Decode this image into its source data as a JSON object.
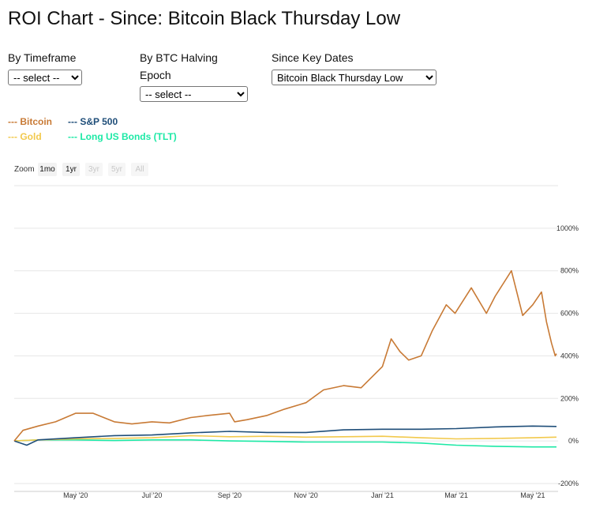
{
  "page": {
    "title": "ROI Chart - Since: Bitcoin Black Thursday Low"
  },
  "controls": {
    "timeframe": {
      "label": "By Timeframe",
      "value": "-- select --"
    },
    "halving": {
      "label_line1": "By BTC Halving",
      "label_line2": "Epoch",
      "value": "-- select --"
    },
    "key_dates": {
      "label": "Since Key Dates",
      "value": "Bitcoin Black Thursday Low"
    }
  },
  "legend": [
    {
      "label": "--- Bitcoin",
      "color": "#c87a35"
    },
    {
      "label": "--- S&P 500",
      "color": "#1f4e79"
    },
    {
      "label": "--- Gold",
      "color": "#f2c94c"
    },
    {
      "label": "--- Long US Bonds (TLT)",
      "color": "#1de9a6"
    }
  ],
  "zoom": {
    "label": "Zoom",
    "buttons": [
      {
        "label": "1mo",
        "enabled": true
      },
      {
        "label": "1yr",
        "enabled": true
      },
      {
        "label": "3yr",
        "enabled": false
      },
      {
        "label": "5yr",
        "enabled": false
      },
      {
        "label": "All",
        "enabled": false
      }
    ]
  },
  "chart_data": {
    "type": "line",
    "xlim": [
      "2020-03-13",
      "2021-05-20"
    ],
    "ylim": [
      -200,
      1200
    ],
    "y_ticks": [
      -200,
      0,
      200,
      400,
      600,
      800,
      1000
    ],
    "y_tick_labels": [
      "-200%",
      "0%",
      "200%",
      "400%",
      "600%",
      "800%",
      "1000%"
    ],
    "x_ticks": [
      "2020-05-01",
      "2020-07-01",
      "2020-09-01",
      "2020-11-01",
      "2021-01-01",
      "2021-03-01",
      "2021-05-01"
    ],
    "x_tick_labels": [
      "May '20",
      "Jul '20",
      "Sep '20",
      "Nov '20",
      "Jan '21",
      "Mar '21",
      "May '21"
    ],
    "grid": true,
    "legend_position": "top-left",
    "series": [
      {
        "name": "Bitcoin",
        "color": "#c87a35",
        "x": [
          "2020-03-13",
          "2020-03-20",
          "2020-04-01",
          "2020-04-15",
          "2020-05-01",
          "2020-05-15",
          "2020-06-01",
          "2020-06-15",
          "2020-07-01",
          "2020-07-15",
          "2020-08-01",
          "2020-08-15",
          "2020-09-01",
          "2020-09-05",
          "2020-09-15",
          "2020-10-01",
          "2020-10-15",
          "2020-11-01",
          "2020-11-15",
          "2020-12-01",
          "2020-12-15",
          "2021-01-01",
          "2021-01-08",
          "2021-01-15",
          "2021-01-22",
          "2021-02-01",
          "2021-02-10",
          "2021-02-21",
          "2021-02-28",
          "2021-03-13",
          "2021-03-25",
          "2021-04-01",
          "2021-04-14",
          "2021-04-23",
          "2021-05-01",
          "2021-05-08",
          "2021-05-12",
          "2021-05-16",
          "2021-05-19",
          "2021-05-20"
        ],
        "values": [
          0,
          50,
          70,
          90,
          130,
          130,
          90,
          80,
          90,
          85,
          110,
          120,
          130,
          90,
          100,
          120,
          150,
          180,
          240,
          260,
          250,
          350,
          480,
          420,
          380,
          400,
          520,
          640,
          600,
          720,
          600,
          680,
          800,
          590,
          640,
          700,
          560,
          460,
          400,
          410
        ]
      },
      {
        "name": "S&P 500",
        "color": "#1f4e79",
        "x": [
          "2020-03-13",
          "2020-03-23",
          "2020-04-01",
          "2020-05-01",
          "2020-06-01",
          "2020-07-01",
          "2020-08-01",
          "2020-09-01",
          "2020-10-01",
          "2020-11-01",
          "2020-12-01",
          "2021-01-01",
          "2021-02-01",
          "2021-03-01",
          "2021-04-01",
          "2021-05-01",
          "2021-05-20"
        ],
        "values": [
          0,
          -20,
          5,
          15,
          25,
          28,
          38,
          45,
          40,
          40,
          52,
          55,
          55,
          58,
          66,
          70,
          68
        ]
      },
      {
        "name": "Gold",
        "color": "#f2c94c",
        "x": [
          "2020-03-13",
          "2020-04-01",
          "2020-05-01",
          "2020-06-01",
          "2020-07-01",
          "2020-08-01",
          "2020-09-01",
          "2020-10-01",
          "2020-11-01",
          "2020-12-01",
          "2021-01-01",
          "2021-02-01",
          "2021-03-01",
          "2021-04-01",
          "2021-05-01",
          "2021-05-20"
        ],
        "values": [
          0,
          5,
          10,
          12,
          15,
          25,
          20,
          22,
          18,
          20,
          22,
          15,
          10,
          12,
          15,
          18
        ]
      },
      {
        "name": "Long US Bonds (TLT)",
        "color": "#1de9a6",
        "x": [
          "2020-03-13",
          "2020-04-01",
          "2020-05-01",
          "2020-06-01",
          "2020-07-01",
          "2020-08-01",
          "2020-09-01",
          "2020-10-01",
          "2020-11-01",
          "2020-12-01",
          "2021-01-01",
          "2021-02-01",
          "2021-03-01",
          "2021-04-01",
          "2021-05-01",
          "2021-05-20"
        ],
        "values": [
          0,
          5,
          5,
          2,
          5,
          5,
          0,
          -2,
          -5,
          -5,
          -5,
          -10,
          -20,
          -25,
          -28,
          -28
        ]
      }
    ]
  }
}
